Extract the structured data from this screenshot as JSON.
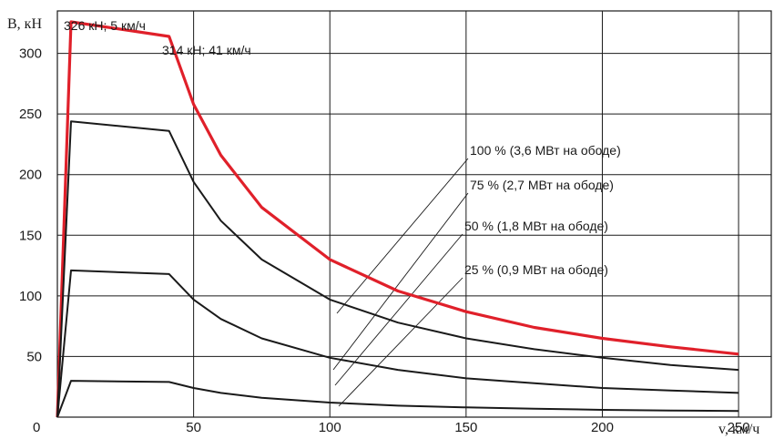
{
  "chart_data": {
    "type": "line",
    "xlabel": "v, км/ч",
    "ylabel": "B, кН",
    "xlim": [
      0,
      262
    ],
    "ylim": [
      0,
      335
    ],
    "xticks": [
      0,
      50,
      100,
      150,
      200,
      250
    ],
    "yticks": [
      50,
      100,
      150,
      200,
      250,
      300
    ],
    "grid": true,
    "series": [
      {
        "name": "100 % (3,6 МВт на ободе)",
        "color": "#e0202a",
        "x": [
          0,
          5,
          41,
          50,
          60,
          75,
          100,
          125,
          150,
          175,
          200,
          225,
          250
        ],
        "y": [
          0,
          326,
          314,
          258,
          216,
          173,
          130,
          104,
          87,
          74,
          65,
          58,
          52
        ]
      },
      {
        "name": "75 % (2,7 МВт на ободе)",
        "color": "#1a1a1a",
        "x": [
          0,
          5,
          41,
          50,
          60,
          75,
          100,
          125,
          150,
          175,
          200,
          225,
          250
        ],
        "y": [
          0,
          244,
          236,
          194,
          162,
          130,
          97,
          78,
          65,
          56,
          49,
          43,
          39
        ]
      },
      {
        "name": "50 % (1,8 МВт на ободе)",
        "color": "#1a1a1a",
        "x": [
          0,
          5,
          41,
          50,
          60,
          75,
          100,
          125,
          150,
          175,
          200,
          225,
          250
        ],
        "y": [
          0,
          121,
          118,
          97,
          81,
          65,
          49,
          39,
          32,
          28,
          24,
          22,
          20
        ]
      },
      {
        "name": "25 % (0,9 МВт на ободе)",
        "color": "#1a1a1a",
        "x": [
          0,
          5,
          41,
          50,
          60,
          75,
          100,
          125,
          150,
          175,
          200,
          225,
          250
        ],
        "y": [
          0,
          30,
          29,
          24,
          20,
          16,
          12,
          9.5,
          8,
          7,
          6,
          5.5,
          5
        ]
      }
    ],
    "annotations": [
      {
        "text": "326 кН; 5 км/ч",
        "x": 5,
        "y": 326
      },
      {
        "text": "314 кН; 41 км/ч",
        "x": 41,
        "y": 314
      }
    ]
  }
}
